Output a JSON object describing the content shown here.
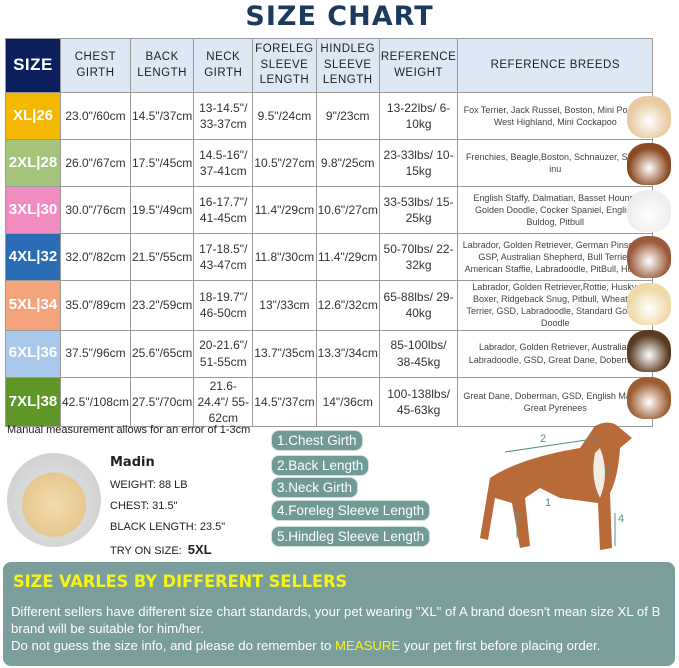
{
  "title": "SIZE CHART",
  "headers": [
    "SIZE",
    "CHEST GIRTH",
    "BACK LENGTH",
    "NECK GIRTH",
    "FORELEG SLEEVE LENGTH",
    "HINDLEG SLEEVE LENGTH",
    "REFERENCE WEIGHT",
    "REFERENCE BREEDS"
  ],
  "rows": [
    {
      "size": "XL|26",
      "color": "#f5b800",
      "chest": "23.0\"/60cm",
      "back": "14.5\"/37cm",
      "neck": "13-14.5\"/ 33-37cm",
      "foreleg": "9.5\"/24cm",
      "hindleg": "9\"/23cm",
      "weight": "13-22lbs/ 6-10kg",
      "breeds": "Fox Terrier, Jack Russel, Boston, Mini Poodle, West Highland, Mini Cockapoo"
    },
    {
      "size": "2XL|28",
      "color": "#a3c47a",
      "chest": "26.0\"/67cm",
      "back": "17.5\"/45cm",
      "neck": "14.5-16\"/ 37-41cm",
      "foreleg": "10.5\"/27cm",
      "hindleg": "9.8\"/25cm",
      "weight": "23-33lbs/ 10-15kg",
      "breeds": "Frenchies, Beagle,Boston, Schnauzer, Shiba inu"
    },
    {
      "size": "3XL|30",
      "color": "#f08cc0",
      "chest": "30.0\"/76cm",
      "back": "19.5\"/49cm",
      "neck": "16-17.7\"/ 41-45cm",
      "foreleg": "11.4\"/29cm",
      "hindleg": "10.6\"/27cm",
      "weight": "33-53lbs/ 15-25kg",
      "breeds": "English Staffy, Dalmatian, Basset Hound, Golden Doodle, Cocker Spaniel, English Buldog, Pitbull"
    },
    {
      "size": "4XL|32",
      "color": "#2a6db5",
      "chest": "32.0\"/82cm",
      "back": "21.5\"/55cm",
      "neck": "17-18.5\"/ 43-47cm",
      "foreleg": "11.8\"/30cm",
      "hindleg": "11.4\"/29cm",
      "weight": "50-70lbs/ 22-32kg",
      "breeds": "Labrador, Golden Retriever, German Pinscher, GSP, Australian Shepherd, Bull Terrier, American Staffie, Labradoodle, PitBull, Husky"
    },
    {
      "size": "5XL|34",
      "color": "#f4a47a",
      "chest": "35.0\"/89cm",
      "back": "23.2\"/59cm",
      "neck": "18-19.7\"/ 46-50cm",
      "foreleg": "13\"/33cm",
      "hindleg": "12.6\"/32cm",
      "weight": "65-88lbs/ 29-40kg",
      "breeds": "Labrador, Golden Retriever,Rottie, Husky, Boxer, Ridgeback Snug, Pitbull, Wheaten Terrier, GSD, Labradoodle,  Standard Golden Doodle"
    },
    {
      "size": "6XL|36",
      "color": "#a9c8ea",
      "chest": "37.5\"/96cm",
      "back": "25.6\"/65cm",
      "neck": "20-21.6\"/ 51-55cm",
      "foreleg": "13.7\"/35cm",
      "hindleg": "13.3\"/34cm",
      "weight": "85-100lbs/ 38-45kg",
      "breeds": "Labrador, Golden Retriever, Australian Labradoodle, GSD, Great Dane, Doberman"
    },
    {
      "size": "7XL|38",
      "color": "#5e9628",
      "chest": "42.5\"/108cm",
      "back": "27.5\"/70cm",
      "neck": "21.6-24.4\"/ 55-62cm",
      "foreleg": "14.5\"/37cm",
      "hindleg": "14\"/36cm",
      "weight": "100-138lbs/ 45-63kg",
      "breeds": "Great Dane, Doberman, GSD, English Mastiff, Great Pyrenees"
    }
  ],
  "note": "Manual measurement allows for an error of 1-3cm",
  "model": {
    "name": "Madin",
    "weight": "WEIGHT: 88 LB",
    "chest": "CHEST: 31.5\"",
    "length": "BLACK LENGTH: 23.5\"",
    "try_label": "TRY ON SIZE:",
    "try_size": "5XL"
  },
  "measurements": [
    "1.Chest Girth",
    "2.Back Length",
    "3.Neck Girth",
    "4.Foreleg Sleeve Length",
    "5.Hindleg Sleeve Length"
  ],
  "diagram_labels": [
    "1",
    "2",
    "3",
    "4",
    "5"
  ],
  "notice": {
    "heading": "SIZE VARLES BY DIFFERENT SELLERS",
    "line1": "Different sellers have different size chart standards, your pet wearing \"XL\" of A brand doesn't mean size  XL of B brand will be suitable for him/her.",
    "line2a": "Do not guess the size info, and please do remember to ",
    "line2b": "MEASURE",
    "line2c": " your pet first before placing order."
  }
}
